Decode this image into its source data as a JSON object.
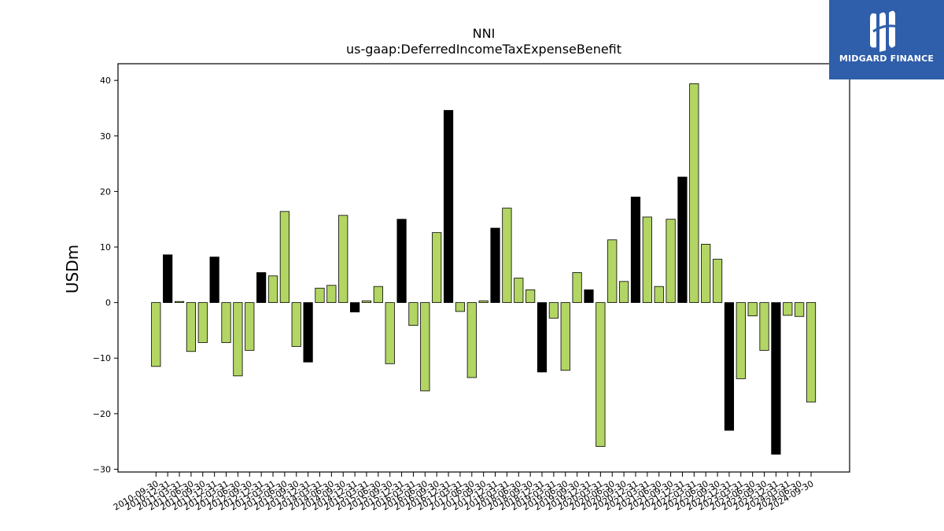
{
  "logo": {
    "text": "MIDGARD FINANCE",
    "background": "#2f5eaa",
    "icon": "midgard-logo-mark"
  },
  "colors": {
    "positive_bar": "#b2d564",
    "year_end_bar": "#000000",
    "edge": "#000000"
  },
  "chart_data": {
    "type": "bar",
    "title": "NNI",
    "subtitle": "us-gaap:DeferredIncomeTaxExpenseBenefit",
    "ylabel": "USDm",
    "xlabel": "",
    "ylim": [
      -30.5,
      43
    ],
    "yticks": [
      -30,
      -20,
      -10,
      0,
      10,
      20,
      30,
      40
    ],
    "grid": false,
    "legend": "none",
    "categories": [
      "2010-09-30",
      "2010-12-31",
      "2011-03-31",
      "2011-06-30",
      "2011-09-30",
      "2011-12-31",
      "2012-03-31",
      "2012-06-30",
      "2012-09-30",
      "2012-12-31",
      "2013-03-31",
      "2013-06-30",
      "2013-09-30",
      "2013-12-31",
      "2014-03-31",
      "2014-06-30",
      "2014-09-30",
      "2014-12-31",
      "2015-03-31",
      "2015-06-30",
      "2015-09-30",
      "2015-12-31",
      "2016-03-31",
      "2016-06-30",
      "2016-09-30",
      "2016-12-31",
      "2017-03-31",
      "2017-06-30",
      "2017-09-30",
      "2017-12-31",
      "2018-03-31",
      "2018-06-30",
      "2018-09-30",
      "2018-12-31",
      "2019-03-31",
      "2019-06-30",
      "2019-09-30",
      "2019-12-31",
      "2020-03-31",
      "2020-06-30",
      "2020-09-30",
      "2020-12-31",
      "2021-03-31",
      "2021-06-30",
      "2021-09-30",
      "2021-12-31",
      "2022-03-31",
      "2022-06-30",
      "2022-09-30",
      "2022-12-31",
      "2023-03-31",
      "2023-06-30",
      "2023-09-30",
      "2023-12-31",
      "2024-03-31",
      "2024-06-30",
      "2024-09-30"
    ],
    "values": [
      -11.5,
      8.6,
      0.2,
      -8.8,
      -7.2,
      8.2,
      -7.2,
      -13.2,
      -8.6,
      5.4,
      4.8,
      16.4,
      -7.9,
      -10.7,
      2.6,
      3.1,
      15.7,
      -1.7,
      0.3,
      2.9,
      -11.0,
      15.0,
      -4.1,
      -15.9,
      12.6,
      34.6,
      -1.6,
      -13.5,
      0.3,
      13.4,
      17.0,
      4.4,
      2.3,
      -12.5,
      -2.8,
      -12.2,
      5.4,
      2.3,
      -25.9,
      11.3,
      3.8,
      19.0,
      15.4,
      2.9,
      15.0,
      22.6,
      39.4,
      10.5,
      7.8,
      -23.0,
      -13.7,
      -2.4,
      -8.6,
      -27.3,
      -2.3,
      -2.5,
      -17.9
    ]
  }
}
